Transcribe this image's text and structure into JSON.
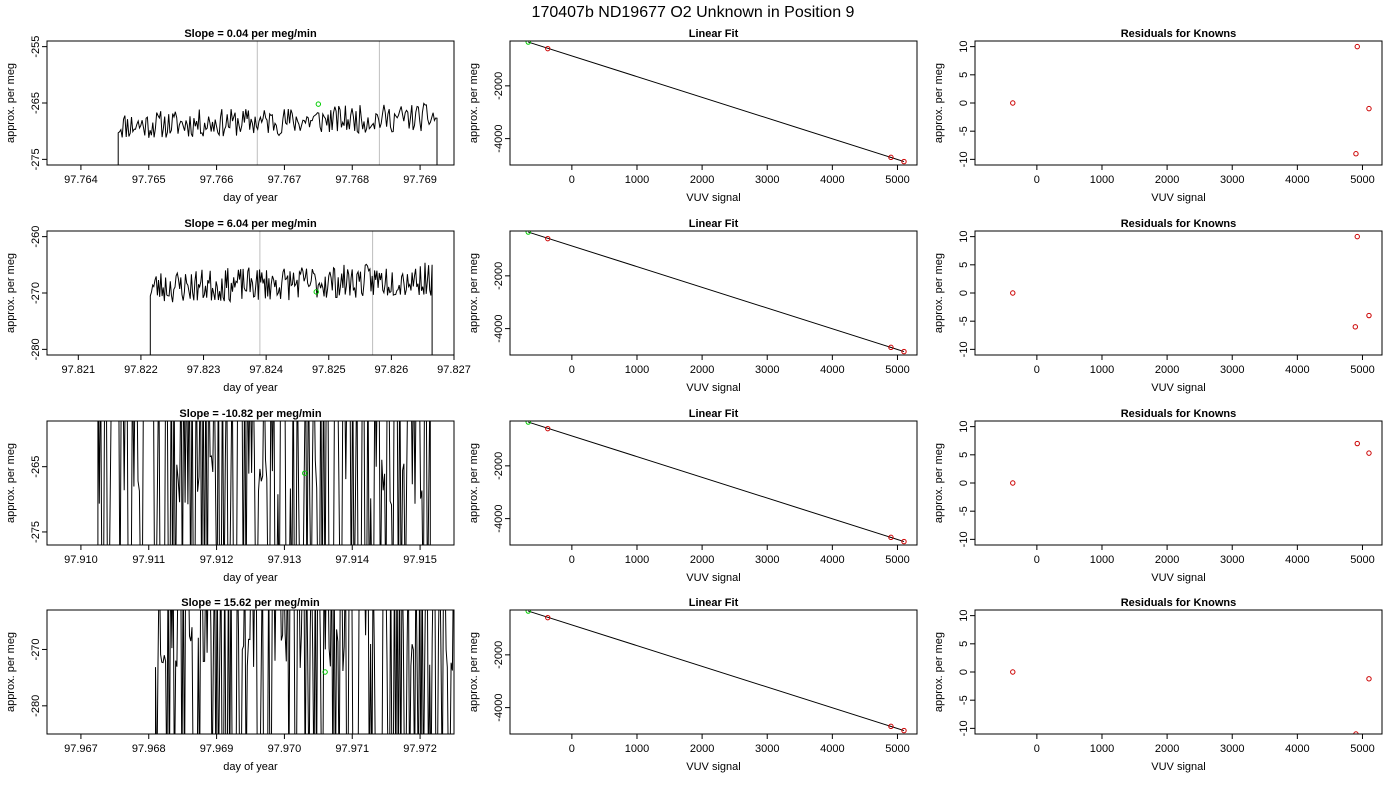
{
  "page_title": "170407b     ND19677   O2 Unknown in Position  9",
  "colors": {
    "line": "#000000",
    "standard": "#00cc00",
    "known": "#cc0000",
    "guide": "#bebebe"
  },
  "rows": [
    {
      "ts": {
        "title": "Slope =  0.04  per meg/min",
        "xlabel": "day of year",
        "ylabel": "approx. per meg",
        "xlim": [
          97.7635,
          97.7695
        ],
        "ylim": [
          -276,
          -254
        ],
        "xticks": [
          "97.764",
          "97.765",
          "97.766",
          "97.767",
          "97.768",
          "97.769"
        ],
        "yticks": [
          "-255",
          "-265",
          "-275"
        ],
        "vlines": [
          97.7666,
          97.7684
        ],
        "seg": [
          97.76455,
          97.76925
        ],
        "base": -269,
        "amp": 2.5,
        "seed": 11,
        "spiky": false,
        "point": [
          97.7675,
          -265.2
        ]
      },
      "fit": {
        "title": "Linear Fit",
        "xlabel": "VUV signal",
        "ylabel": "approx. per meg",
        "xlim": [
          -950,
          5300
        ],
        "ylim": [
          -5000,
          -300
        ],
        "xticks": [
          "0",
          "1000",
          "2000",
          "3000",
          "4000",
          "5000"
        ],
        "yticks": [
          "-2000",
          "-4000"
        ],
        "knowns": [
          [
            -370,
            -590
          ],
          [
            4900,
            -4710
          ],
          [
            5100,
            -4870
          ]
        ],
        "standard": [
          -670,
          -340
        ]
      },
      "res": {
        "title": "Residuals for Knowns",
        "xlabel": "VUV signal",
        "ylabel": "approx. per meg",
        "xlim": [
          -950,
          5300
        ],
        "ylim": [
          -11,
          11
        ],
        "xticks": [
          "0",
          "1000",
          "2000",
          "3000",
          "4000",
          "5000"
        ],
        "yticks": [
          "10",
          "5",
          "0",
          "-5",
          "-10"
        ],
        "points": [
          [
            -370,
            0
          ],
          [
            4920,
            10
          ],
          [
            5100,
            -1
          ],
          [
            4900,
            -9
          ]
        ]
      }
    },
    {
      "ts": {
        "title": "Slope =  6.04  per meg/min",
        "xlabel": "day of year",
        "ylabel": "approx. per meg",
        "xlim": [
          97.8205,
          97.827
        ],
        "ylim": [
          -281,
          -259
        ],
        "xticks": [
          "97.821",
          "97.822",
          "97.823",
          "97.824",
          "97.825",
          "97.826",
          "97.827"
        ],
        "yticks": [
          "-260",
          "-270",
          "-280"
        ],
        "vlines": [
          97.8239,
          97.8257
        ],
        "seg": [
          97.82215,
          97.82665
        ],
        "base": -269,
        "amp": 3,
        "seed": 23,
        "spiky": false,
        "point": [
          97.8248,
          -269.8
        ]
      },
      "fit": {
        "title": "Linear Fit",
        "xlabel": "VUV signal",
        "ylabel": "approx. per meg",
        "xlim": [
          -950,
          5300
        ],
        "ylim": [
          -5000,
          -300
        ],
        "xticks": [
          "0",
          "1000",
          "2000",
          "3000",
          "4000",
          "5000"
        ],
        "yticks": [
          "-2000",
          "-4000"
        ],
        "knowns": [
          [
            -370,
            -590
          ],
          [
            4900,
            -4710
          ],
          [
            5100,
            -4870
          ]
        ],
        "standard": [
          -670,
          -340
        ]
      },
      "res": {
        "title": "Residuals for Knowns",
        "xlabel": "VUV signal",
        "ylabel": "approx. per meg",
        "xlim": [
          -950,
          5300
        ],
        "ylim": [
          -11,
          11
        ],
        "xticks": [
          "0",
          "1000",
          "2000",
          "3000",
          "4000",
          "5000"
        ],
        "yticks": [
          "10",
          "5",
          "0",
          "-5",
          "-10"
        ],
        "points": [
          [
            -370,
            0
          ],
          [
            4920,
            10
          ],
          [
            5100,
            -4
          ],
          [
            4890,
            -6
          ]
        ]
      }
    },
    {
      "ts": {
        "title": "Slope =  -10.82  per meg/min",
        "xlabel": "day of year",
        "ylabel": "approx. per meg",
        "xlim": [
          97.9095,
          97.9155
        ],
        "ylim": [
          -277,
          -258
        ],
        "xticks": [
          "97.910",
          "97.911",
          "97.912",
          "97.913",
          "97.914",
          "97.915"
        ],
        "yticks": [
          "-265",
          "-275"
        ],
        "vlines": [],
        "seg": [
          97.91025,
          97.91515
        ],
        "base": -267,
        "amp": 40,
        "seed": 37,
        "spiky": true,
        "point": [
          97.9133,
          -266
        ]
      },
      "fit": {
        "title": "Linear Fit",
        "xlabel": "VUV signal",
        "ylabel": "approx. per meg",
        "xlim": [
          -950,
          5300
        ],
        "ylim": [
          -5000,
          -300
        ],
        "xticks": [
          "0",
          "1000",
          "2000",
          "3000",
          "4000",
          "5000"
        ],
        "yticks": [
          "-2000",
          "-4000"
        ],
        "knowns": [
          [
            -370,
            -590
          ],
          [
            4900,
            -4710
          ],
          [
            5100,
            -4870
          ]
        ],
        "standard": [
          -670,
          -340
        ]
      },
      "res": {
        "title": "Residuals for Knowns",
        "xlabel": "VUV signal",
        "ylabel": "approx. per meg",
        "xlim": [
          -950,
          5300
        ],
        "ylim": [
          -11,
          11
        ],
        "xticks": [
          "0",
          "1000",
          "2000",
          "3000",
          "4000",
          "5000"
        ],
        "yticks": [
          "10",
          "5",
          "0",
          "-5",
          "-10"
        ],
        "points": [
          [
            -370,
            0
          ],
          [
            4920,
            7
          ],
          [
            5100,
            5.3
          ]
        ]
      }
    },
    {
      "ts": {
        "title": "Slope =  15.62  per meg/min",
        "xlabel": "day of year",
        "ylabel": "approx. per meg",
        "xlim": [
          97.9665,
          97.9725
        ],
        "ylim": [
          -285,
          -263
        ],
        "xticks": [
          "97.967",
          "97.968",
          "97.969",
          "97.970",
          "97.971",
          "97.972"
        ],
        "yticks": [
          "-270",
          "-280"
        ],
        "vlines": [],
        "seg": [
          97.9681,
          97.97255
        ],
        "base": -270,
        "amp": 30,
        "seed": 53,
        "spiky": true,
        "point": [
          97.9706,
          -274
        ]
      },
      "fit": {
        "title": "Linear Fit",
        "xlabel": "VUV signal",
        "ylabel": "approx. per meg",
        "xlim": [
          -950,
          5300
        ],
        "ylim": [
          -5000,
          -300
        ],
        "xticks": [
          "0",
          "1000",
          "2000",
          "3000",
          "4000",
          "5000"
        ],
        "yticks": [
          "-2000",
          "-4000"
        ],
        "knowns": [
          [
            -370,
            -590
          ],
          [
            4900,
            -4710
          ],
          [
            5100,
            -4870
          ]
        ],
        "standard": [
          -670,
          -340
        ]
      },
      "res": {
        "title": "Residuals for Knowns",
        "xlabel": "VUV signal",
        "ylabel": "approx. per meg",
        "xlim": [
          -950,
          5300
        ],
        "ylim": [
          -11,
          11
        ],
        "xticks": [
          "0",
          "1000",
          "2000",
          "3000",
          "4000",
          "5000"
        ],
        "yticks": [
          "10",
          "5",
          "0",
          "-5",
          "-10"
        ],
        "points": [
          [
            -370,
            0
          ],
          [
            5100,
            -1.2
          ],
          [
            4900,
            -11
          ]
        ]
      }
    }
  ],
  "chart_data": [
    {
      "type": "line",
      "title": "Slope =  0.04  per meg/min",
      "xlabel": "day of year",
      "ylabel": "approx. per meg",
      "xlim": [
        97.7635,
        97.7695
      ],
      "ylim": [
        -276,
        -254
      ],
      "grid": false
    },
    {
      "type": "scatter",
      "title": "Linear Fit",
      "xlabel": "VUV signal",
      "ylabel": "approx. per meg",
      "x": [
        -670,
        -370,
        4900,
        5100
      ],
      "y": [
        -340,
        -590,
        -4710,
        -4870
      ]
    },
    {
      "type": "scatter",
      "title": "Residuals for Knowns",
      "xlabel": "VUV signal",
      "ylabel": "approx. per meg",
      "x": [
        -370,
        4920,
        5100,
        4900
      ],
      "y": [
        0,
        10,
        -1,
        -9
      ]
    },
    {
      "type": "line",
      "title": "Slope =  6.04  per meg/min",
      "xlabel": "day of year",
      "ylabel": "approx. per meg",
      "xlim": [
        97.8205,
        97.827
      ],
      "ylim": [
        -281,
        -259
      ]
    },
    {
      "type": "scatter",
      "title": "Linear Fit",
      "xlabel": "VUV signal",
      "ylabel": "approx. per meg",
      "x": [
        -670,
        -370,
        4900,
        5100
      ],
      "y": [
        -340,
        -590,
        -4710,
        -4870
      ]
    },
    {
      "type": "scatter",
      "title": "Residuals for Knowns",
      "xlabel": "VUV signal",
      "ylabel": "approx. per meg",
      "x": [
        -370,
        4920,
        5100,
        4890
      ],
      "y": [
        0,
        10,
        -4,
        -6
      ]
    },
    {
      "type": "line",
      "title": "Slope =  -10.82  per meg/min",
      "xlabel": "day of year",
      "ylabel": "approx. per meg",
      "xlim": [
        97.9095,
        97.9155
      ],
      "ylim": [
        -277,
        -258
      ]
    },
    {
      "type": "scatter",
      "title": "Linear Fit",
      "xlabel": "VUV signal",
      "ylabel": "approx. per meg",
      "x": [
        -670,
        -370,
        4900,
        5100
      ],
      "y": [
        -340,
        -590,
        -4710,
        -4870
      ]
    },
    {
      "type": "scatter",
      "title": "Residuals for Knowns",
      "xlabel": "VUV signal",
      "ylabel": "approx. per meg",
      "x": [
        -370,
        4920,
        5100
      ],
      "y": [
        0,
        7,
        5.3
      ]
    },
    {
      "type": "line",
      "title": "Slope =  15.62  per meg/min",
      "xlabel": "day of year",
      "ylabel": "approx. per meg",
      "xlim": [
        97.9665,
        97.9725
      ],
      "ylim": [
        -285,
        -263
      ]
    },
    {
      "type": "scatter",
      "title": "Linear Fit",
      "xlabel": "VUV signal",
      "ylabel": "approx. per meg",
      "x": [
        -670,
        -370,
        4900,
        5100
      ],
      "y": [
        -340,
        -590,
        -4710,
        -4870
      ]
    },
    {
      "type": "scatter",
      "title": "Residuals for Knowns",
      "xlabel": "VUV signal",
      "ylabel": "approx. per meg",
      "x": [
        -370,
        5100,
        4900
      ],
      "y": [
        0,
        -1.2,
        -11
      ]
    }
  ]
}
